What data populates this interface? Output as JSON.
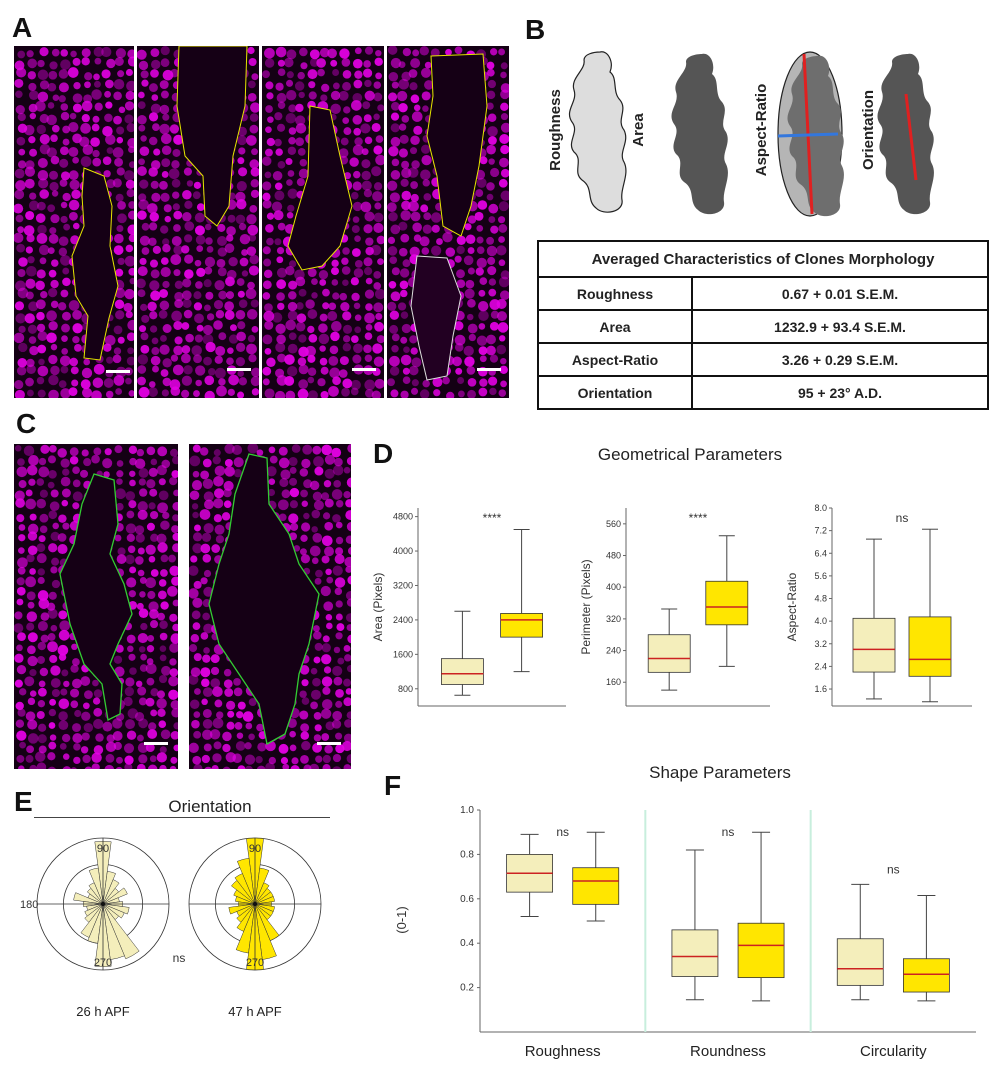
{
  "panels": {
    "a": "A",
    "b": "B",
    "c": "C",
    "d": "D",
    "e": "E",
    "f": "F"
  },
  "colors": {
    "magenta": "#e600e6",
    "outline_yellow": "#e6e600",
    "outline_green": "#33cc33",
    "group1_fill": "#f4eebb",
    "group2_fill": "#ffe600",
    "median": "#cc2222",
    "shape_gray": "#555555"
  },
  "panel_b": {
    "shape_labels": [
      "Roughness",
      "Area",
      "Aspect-Ratio",
      "Orientation"
    ],
    "table_title": "Averaged Characteristics of Clones Morphology",
    "rows": [
      {
        "name": "Roughness",
        "value": "0.67 + 0.01 S.E.M."
      },
      {
        "name": "Area",
        "value": "1232.9 + 93.4 S.E.M."
      },
      {
        "name": "Aspect-Ratio",
        "value": "3.26 + 0.29 S.E.M."
      },
      {
        "name": "Orientation",
        "value": "95 + 23°   A.D."
      }
    ]
  },
  "chart_data": [
    {
      "id": "D1",
      "type": "box",
      "section_title": "Geometrical Parameters",
      "ylabel": "Area (Pixels)",
      "ylim": [
        400,
        5000
      ],
      "ticks": [
        800,
        1600,
        2400,
        3200,
        4000,
        4800
      ],
      "tick_labels": [
        "800",
        "1600",
        "2400",
        "3200",
        "4000",
        "4800"
      ],
      "significance": "****",
      "boxes": [
        {
          "group": "26 h APF",
          "min": 650,
          "q1": 900,
          "median": 1150,
          "q3": 1500,
          "max": 2600
        },
        {
          "group": "47 h APF",
          "min": 1200,
          "q1": 2000,
          "median": 2400,
          "q3": 2550,
          "max": 4500
        }
      ]
    },
    {
      "id": "D2",
      "type": "box",
      "ylabel": "Perimeter (Pixels)",
      "ylim": [
        100,
        600
      ],
      "ticks": [
        160,
        240,
        320,
        400,
        480,
        560
      ],
      "tick_labels": [
        "160",
        "240",
        "320",
        "400",
        "480",
        "560"
      ],
      "significance": "****",
      "boxes": [
        {
          "group": "26 h APF",
          "min": 140,
          "q1": 185,
          "median": 220,
          "q3": 280,
          "max": 345
        },
        {
          "group": "47 h APF",
          "min": 200,
          "q1": 305,
          "median": 350,
          "q3": 415,
          "max": 530
        }
      ]
    },
    {
      "id": "D3",
      "type": "box",
      "ylabel": "Aspect-Ratio",
      "ylim": [
        1.0,
        8.0
      ],
      "ticks": [
        1.6,
        2.4,
        3.2,
        4.0,
        4.8,
        5.6,
        6.4,
        7.2,
        8.0
      ],
      "tick_labels": [
        "1.6",
        "2.4",
        "3.2",
        "4.0",
        "4.8",
        "5.6",
        "6.4",
        "7.2",
        "8.0"
      ],
      "significance": "ns",
      "boxes": [
        {
          "group": "26 h APF",
          "min": 1.25,
          "q1": 2.2,
          "median": 3.0,
          "q3": 4.1,
          "max": 6.9
        },
        {
          "group": "47 h APF",
          "min": 1.15,
          "q1": 2.05,
          "median": 2.65,
          "q3": 4.15,
          "max": 7.25
        }
      ]
    },
    {
      "id": "E",
      "type": "rose",
      "title": "Orientation",
      "angle_labels": [
        "90",
        "180",
        "270"
      ],
      "significance": "ns",
      "bin_width_deg": 15,
      "plots": [
        {
          "label": "26 h APF",
          "bins": [
            {
              "center": 90,
              "r": 0.95
            },
            {
              "center": 105,
              "r": 0.55
            },
            {
              "center": 75,
              "r": 0.5
            },
            {
              "center": 120,
              "r": 0.35
            },
            {
              "center": 60,
              "r": 0.4
            },
            {
              "center": 135,
              "r": 0.3
            },
            {
              "center": 45,
              "r": 0.3
            },
            {
              "center": 150,
              "r": 0.25
            },
            {
              "center": 30,
              "r": 0.4
            },
            {
              "center": 165,
              "r": 0.45
            },
            {
              "center": 15,
              "r": 0.25
            },
            {
              "center": 180,
              "r": 0.3
            },
            {
              "center": 0,
              "r": 0.3
            },
            {
              "center": 195,
              "r": 0.25
            },
            {
              "center": 345,
              "r": 0.4
            },
            {
              "center": 210,
              "r": 0.3
            },
            {
              "center": 330,
              "r": 0.35
            },
            {
              "center": 225,
              "r": 0.35
            },
            {
              "center": 315,
              "r": 0.3
            },
            {
              "center": 240,
              "r": 0.55
            },
            {
              "center": 300,
              "r": 0.9
            },
            {
              "center": 255,
              "r": 0.6
            },
            {
              "center": 285,
              "r": 0.85
            },
            {
              "center": 270,
              "r": 0.95
            }
          ]
        },
        {
          "label": "47 h APF",
          "bins": [
            {
              "center": 90,
              "r": 1.0
            },
            {
              "center": 105,
              "r": 0.7
            },
            {
              "center": 75,
              "r": 0.55
            },
            {
              "center": 120,
              "r": 0.5
            },
            {
              "center": 60,
              "r": 0.35
            },
            {
              "center": 135,
              "r": 0.45
            },
            {
              "center": 45,
              "r": 0.3
            },
            {
              "center": 150,
              "r": 0.35
            },
            {
              "center": 30,
              "r": 0.3
            },
            {
              "center": 165,
              "r": 0.3
            },
            {
              "center": 15,
              "r": 0.3
            },
            {
              "center": 180,
              "r": 0.25
            },
            {
              "center": 0,
              "r": 0.25
            },
            {
              "center": 195,
              "r": 0.4
            },
            {
              "center": 345,
              "r": 0.3
            },
            {
              "center": 210,
              "r": 0.3
            },
            {
              "center": 330,
              "r": 0.3
            },
            {
              "center": 225,
              "r": 0.35
            },
            {
              "center": 315,
              "r": 0.3
            },
            {
              "center": 240,
              "r": 0.45
            },
            {
              "center": 300,
              "r": 0.6
            },
            {
              "center": 255,
              "r": 0.75
            },
            {
              "center": 285,
              "r": 0.85
            },
            {
              "center": 270,
              "r": 1.0
            }
          ]
        }
      ]
    },
    {
      "id": "F",
      "type": "box",
      "section_title": "Shape Parameters",
      "ylabel": "(0-1)",
      "ylim": [
        0.0,
        1.0
      ],
      "ticks": [
        0.2,
        0.4,
        0.6,
        0.8,
        1.0
      ],
      "tick_labels": [
        "0.2",
        "0.4",
        "0.6",
        "0.8",
        "1.0"
      ],
      "categories": [
        "Roughness",
        "Roundness",
        "Circularity"
      ],
      "significance": [
        "ns",
        "ns",
        "ns"
      ],
      "boxes": [
        {
          "category": "Roughness",
          "group": "26 h APF",
          "min": 0.52,
          "q1": 0.63,
          "median": 0.715,
          "q3": 0.8,
          "max": 0.89
        },
        {
          "category": "Roughness",
          "group": "47 h APF",
          "min": 0.5,
          "q1": 0.575,
          "median": 0.68,
          "q3": 0.74,
          "max": 0.9
        },
        {
          "category": "Roundness",
          "group": "26 h APF",
          "min": 0.145,
          "q1": 0.25,
          "median": 0.34,
          "q3": 0.46,
          "max": 0.82
        },
        {
          "category": "Roundness",
          "group": "47 h APF",
          "min": 0.14,
          "q1": 0.245,
          "median": 0.39,
          "q3": 0.49,
          "max": 0.9
        },
        {
          "category": "Circularity",
          "group": "26 h APF",
          "min": 0.145,
          "q1": 0.21,
          "median": 0.285,
          "q3": 0.42,
          "max": 0.665
        },
        {
          "category": "Circularity",
          "group": "47 h APF",
          "min": 0.14,
          "q1": 0.18,
          "median": 0.26,
          "q3": 0.33,
          "max": 0.615
        }
      ]
    }
  ]
}
